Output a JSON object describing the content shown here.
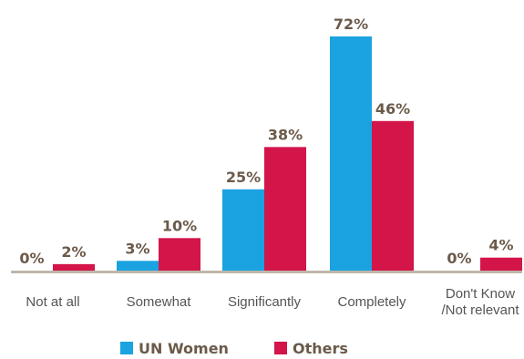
{
  "chart_data": {
    "type": "bar",
    "categories": [
      [
        "Not at all"
      ],
      [
        "Somewhat"
      ],
      [
        "Significantly"
      ],
      [
        "Completely"
      ],
      [
        "Don't Know",
        "/Not relevant"
      ]
    ],
    "series": [
      {
        "name": "UN Women",
        "color": "#1aa3e0",
        "values": [
          0,
          3,
          25,
          72,
          0
        ],
        "labels": [
          "0%",
          "3%",
          "25%",
          "72%",
          "0%"
        ]
      },
      {
        "name": "Others",
        "color": "#d3154a",
        "values": [
          2,
          10,
          38,
          46,
          4
        ],
        "labels": [
          "2%",
          "10%",
          "38%",
          "46%",
          "4%"
        ]
      }
    ],
    "ylim": [
      0,
      72
    ],
    "grid": false,
    "legend": "bottom-center",
    "axis_color": "#bfb6aa"
  }
}
